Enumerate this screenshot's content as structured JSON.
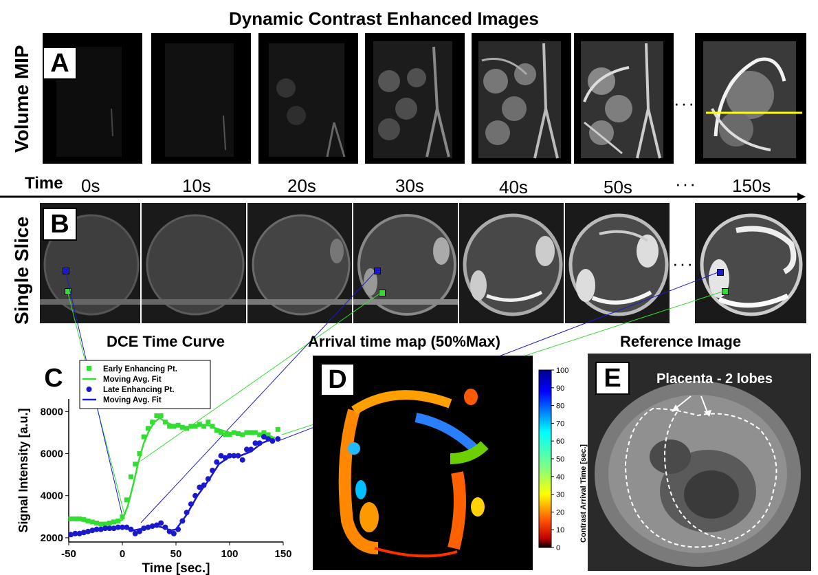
{
  "figure_title": "Dynamic Contrast Enhanced Images",
  "row_a": {
    "label": "Volume MIP",
    "panel": "A"
  },
  "row_b": {
    "label": "Single Slice",
    "panel": "B"
  },
  "time_axis": {
    "label": "Time",
    "ticks": [
      "0s",
      "10s",
      "20s",
      "30s",
      "40s",
      "50s",
      "150s"
    ],
    "ellipsis": "···"
  },
  "panel_c": {
    "panel": "C",
    "title": "DCE Time Curve",
    "legend": [
      "Early Enhancing Pt.",
      "Moving Avg. Fit",
      "Late Enhancing Pt.",
      "Moving Avg. Fit"
    ]
  },
  "panel_d": {
    "panel": "D",
    "title": "Arrival time map (50%Max)",
    "colorbar_label": "Contrast Arrival Time [sec.]",
    "colorbar_ticks": [
      "100",
      "90",
      "80",
      "70",
      "60",
      "50",
      "40",
      "30",
      "20",
      "10",
      "0"
    ]
  },
  "panel_e": {
    "panel": "E",
    "title": "Reference Image",
    "annotation": "Placenta -  2 lobes"
  },
  "colors": {
    "early": "#33dd33",
    "late": "#1a1acc",
    "yellow_line": "#ffff00"
  },
  "chart_data": {
    "type": "scatter",
    "title": "DCE Time Curve",
    "xlabel": "Time [sec.]",
    "ylabel": "Signal Intensity [a.u.]",
    "xlim": [
      -50,
      150
    ],
    "ylim": [
      1800,
      8600
    ],
    "xticks": [
      "-50",
      "0",
      "50",
      "100",
      "150"
    ],
    "yticks": [
      "2000",
      "4000",
      "6000",
      "8000"
    ],
    "legend_position": "top-left",
    "series": [
      {
        "name": "Early Enhancing Pt.",
        "type": "scatter",
        "color": "#33dd33",
        "x": [
          -48,
          -44,
          -40,
          -36,
          -32,
          -28,
          -24,
          -20,
          -16,
          -12,
          -8,
          -4,
          0,
          4,
          8,
          12,
          16,
          20,
          24,
          28,
          32,
          36,
          40,
          44,
          48,
          52,
          56,
          60,
          64,
          68,
          72,
          76,
          80,
          84,
          88,
          92,
          96,
          100,
          104,
          108,
          112,
          116,
          120,
          124,
          128,
          132,
          136,
          140,
          145
        ],
        "y": [
          2900,
          2900,
          2900,
          2870,
          2800,
          2750,
          2700,
          2650,
          2650,
          2700,
          2750,
          2800,
          3000,
          3800,
          4900,
          5500,
          6000,
          6800,
          7200,
          7500,
          7800,
          7800,
          7500,
          7300,
          7300,
          7350,
          7250,
          7200,
          7300,
          7300,
          7400,
          7300,
          7500,
          7300,
          7100,
          7000,
          6900,
          6900,
          7000,
          6950,
          6900,
          7000,
          7000,
          7000,
          6900,
          7000,
          6900,
          6700,
          7150
        ]
      },
      {
        "name": "Moving Avg. Fit",
        "type": "line",
        "color": "#33dd33",
        "x": [
          -50,
          -40,
          -30,
          -20,
          -10,
          -5,
          0,
          5,
          10,
          15,
          20,
          25,
          30,
          35,
          40,
          50,
          60,
          70,
          80,
          90,
          100,
          110,
          120,
          130,
          140
        ],
        "y": [
          2900,
          2850,
          2750,
          2680,
          2700,
          2750,
          2850,
          3500,
          4500,
          5600,
          6500,
          7100,
          7500,
          7700,
          7500,
          7300,
          7250,
          7300,
          7350,
          7150,
          7000,
          6950,
          7000,
          6950,
          6800
        ]
      },
      {
        "name": "Late Enhancing Pt.",
        "type": "scatter",
        "color": "#1a1acc",
        "x": [
          -48,
          -44,
          -40,
          -36,
          -32,
          -28,
          -24,
          -20,
          -16,
          -12,
          -8,
          -4,
          0,
          4,
          8,
          12,
          16,
          20,
          24,
          28,
          32,
          36,
          40,
          44,
          48,
          52,
          56,
          60,
          64,
          68,
          72,
          76,
          80,
          84,
          88,
          92,
          96,
          100,
          104,
          108,
          112,
          116,
          120,
          124,
          128,
          132,
          136,
          140,
          145
        ],
        "y": [
          2150,
          2200,
          2200,
          2250,
          2300,
          2350,
          2400,
          2400,
          2450,
          2450,
          2450,
          2500,
          2500,
          2500,
          2400,
          2200,
          2300,
          2450,
          2500,
          2550,
          2600,
          2700,
          2500,
          2300,
          2200,
          2400,
          2800,
          3200,
          3600,
          4000,
          4400,
          4500,
          4800,
          5200,
          5600,
          5900,
          5800,
          5900,
          5900,
          5900,
          5700,
          6200,
          6200,
          6500,
          6500,
          6800,
          6700,
          6600,
          6700
        ]
      },
      {
        "name": "Moving Avg. Fit",
        "type": "line",
        "color": "#1a1acc",
        "x": [
          -50,
          -40,
          -30,
          -20,
          -10,
          0,
          10,
          20,
          30,
          40,
          45,
          50,
          60,
          70,
          80,
          90,
          100,
          110,
          120,
          130,
          140
        ],
        "y": [
          2150,
          2250,
          2350,
          2400,
          2450,
          2500,
          2350,
          2450,
          2600,
          2450,
          2350,
          2400,
          3100,
          4000,
          4700,
          5500,
          5850,
          5900,
          6100,
          6500,
          6700
        ]
      }
    ]
  }
}
